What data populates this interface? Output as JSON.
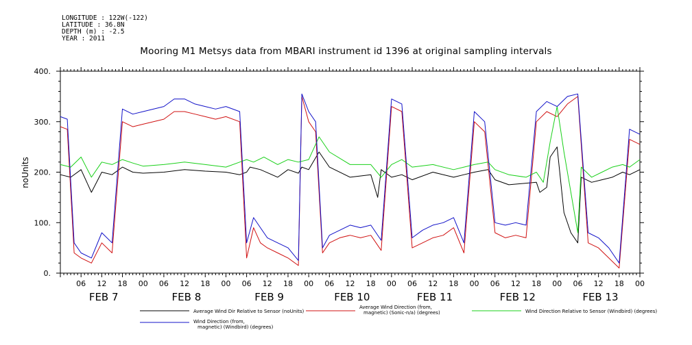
{
  "header": {
    "longitude": "LONGITUDE : 122W(-122)",
    "latitude": "LATITUDE : 36.8N",
    "depth": "DEPTH (m) : -2.5",
    "year": "YEAR : 2011"
  },
  "chart_data": {
    "type": "line",
    "title": "Mooring M1 Metsys data from MBARI instrument id 1396 at original sampling intervals",
    "ylabel": "noUnits",
    "xlabel": "",
    "ylim": [
      0,
      400
    ],
    "yticks": [
      0,
      100,
      200,
      300,
      400
    ],
    "yticklabels": [
      "0.",
      "100.",
      "200.",
      "300.",
      "400."
    ],
    "xlim": [
      0,
      168
    ],
    "xticks": [
      6,
      12,
      18,
      24,
      30,
      36,
      42,
      48,
      54,
      60,
      66,
      72,
      78,
      84,
      90,
      96,
      102,
      108,
      114,
      120,
      126,
      132,
      138,
      144,
      150,
      156,
      162,
      168
    ],
    "xticklabels": [
      "06",
      "12",
      "18",
      "00",
      "06",
      "12",
      "18",
      "00",
      "06",
      "12",
      "18",
      "00",
      "06",
      "12",
      "18",
      "00",
      "06",
      "12",
      "18",
      "00",
      "06",
      "12",
      "18",
      "00",
      "06",
      "12",
      "18",
      "00"
    ],
    "day_labels": [
      {
        "label": "FEB  7",
        "hour": 6
      },
      {
        "label": "FEB  8",
        "hour": 30
      },
      {
        "label": "FEB  9",
        "hour": 54
      },
      {
        "label": "FEB 10",
        "hour": 78
      },
      {
        "label": "FEB 11",
        "hour": 102
      },
      {
        "label": "FEB 12",
        "hour": 126
      },
      {
        "label": "FEB 13",
        "hour": 150
      }
    ],
    "x_units": "hours from 2011-02-07 00:00",
    "series": [
      {
        "name": "Average Wind Dir Relative to Sensor (noUnits)",
        "color": "#000000",
        "x": [
          0,
          3,
          6,
          9,
          12,
          15,
          18,
          21,
          24,
          30,
          36,
          42,
          48,
          52,
          54,
          55,
          58,
          63,
          66,
          69,
          70,
          72,
          75,
          78,
          84,
          90,
          92,
          93,
          96,
          99,
          102,
          108,
          114,
          117,
          120,
          124,
          126,
          130,
          138,
          139,
          141,
          142,
          144,
          146,
          148,
          150,
          151,
          154,
          157,
          160,
          163,
          165,
          168
        ],
        "y": [
          195,
          190,
          205,
          160,
          200,
          195,
          210,
          200,
          198,
          200,
          205,
          202,
          200,
          195,
          200,
          210,
          205,
          190,
          205,
          198,
          210,
          205,
          240,
          210,
          190,
          195,
          150,
          205,
          190,
          195,
          185,
          200,
          190,
          195,
          200,
          205,
          185,
          175,
          180,
          160,
          170,
          230,
          250,
          120,
          80,
          60,
          190,
          180,
          185,
          190,
          200,
          195,
          205
        ]
      },
      {
        "name": "Average Wind Direction (from, magnetic) (Sonic-n/a) (degrees)",
        "color": "#d01010",
        "x": [
          0,
          2,
          4,
          6,
          9,
          12,
          15,
          18,
          21,
          24,
          30,
          33,
          36,
          39,
          42,
          45,
          48,
          52,
          54,
          56,
          58,
          60,
          63,
          66,
          69,
          70,
          72,
          74,
          76,
          78,
          81,
          84,
          87,
          90,
          93,
          96,
          99,
          102,
          105,
          108,
          111,
          114,
          117,
          120,
          123,
          126,
          129,
          132,
          135,
          138,
          141,
          144,
          147,
          150,
          153,
          156,
          159,
          162,
          165,
          168
        ],
        "y": [
          290,
          285,
          40,
          30,
          20,
          60,
          40,
          300,
          290,
          295,
          305,
          320,
          320,
          315,
          310,
          305,
          310,
          300,
          30,
          90,
          60,
          50,
          40,
          30,
          15,
          350,
          300,
          280,
          40,
          60,
          70,
          75,
          70,
          75,
          45,
          330,
          320,
          50,
          60,
          70,
          75,
          90,
          40,
          300,
          280,
          80,
          70,
          75,
          70,
          300,
          320,
          310,
          335,
          350,
          60,
          50,
          30,
          10,
          265,
          255
        ]
      },
      {
        "name": "Wind Direction Relative to Sensor (Windbird) (degrees)",
        "color": "#18d018",
        "x": [
          0,
          3,
          6,
          9,
          12,
          15,
          18,
          21,
          24,
          30,
          36,
          42,
          48,
          52,
          54,
          56,
          59,
          63,
          66,
          69,
          72,
          75,
          78,
          84,
          90,
          93,
          96,
          99,
          102,
          108,
          114,
          117,
          120,
          124,
          126,
          130,
          135,
          138,
          140,
          142,
          144,
          146,
          148,
          150,
          151,
          154,
          157,
          160,
          163,
          165,
          168
        ],
        "y": [
          215,
          210,
          230,
          190,
          220,
          215,
          225,
          218,
          212,
          215,
          220,
          215,
          210,
          220,
          225,
          220,
          230,
          215,
          225,
          220,
          225,
          270,
          240,
          215,
          215,
          190,
          215,
          225,
          210,
          215,
          205,
          210,
          215,
          220,
          205,
          195,
          190,
          200,
          180,
          260,
          330,
          240,
          160,
          80,
          210,
          190,
          200,
          210,
          215,
          210,
          225
        ]
      },
      {
        "name": "Wind Direction (from, magnetic) (Windbird) (degrees)",
        "color": "#1010c8",
        "x": [
          0,
          2,
          4,
          6,
          9,
          12,
          15,
          18,
          21,
          24,
          30,
          33,
          36,
          39,
          42,
          45,
          48,
          52,
          54,
          56,
          58,
          60,
          63,
          66,
          69,
          70,
          72,
          74,
          76,
          78,
          81,
          84,
          87,
          90,
          93,
          96,
          99,
          102,
          105,
          108,
          111,
          114,
          117,
          120,
          123,
          126,
          129,
          132,
          135,
          138,
          141,
          144,
          147,
          150,
          153,
          156,
          159,
          162,
          165,
          168
        ],
        "y": [
          310,
          305,
          60,
          40,
          30,
          80,
          60,
          325,
          315,
          320,
          330,
          345,
          345,
          335,
          330,
          325,
          330,
          320,
          60,
          110,
          90,
          70,
          60,
          50,
          25,
          355,
          320,
          300,
          50,
          75,
          85,
          95,
          90,
          95,
          65,
          345,
          335,
          70,
          85,
          95,
          100,
          110,
          60,
          320,
          300,
          100,
          95,
          100,
          95,
          320,
          340,
          330,
          350,
          355,
          80,
          70,
          50,
          20,
          285,
          275
        ]
      }
    ]
  }
}
